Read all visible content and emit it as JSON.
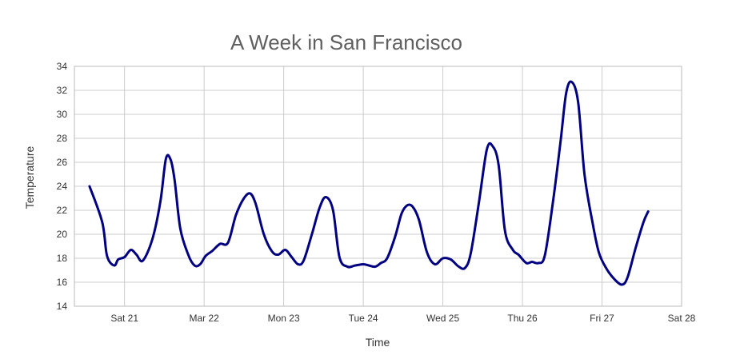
{
  "chart_data": {
    "type": "line",
    "title": "A Week in San Francisco",
    "xlabel": "Time",
    "ylabel": "Temperature",
    "ylim": [
      14,
      34
    ],
    "yticks": [
      "14",
      "16",
      "18",
      "20",
      "22",
      "24",
      "26",
      "28",
      "30",
      "32",
      "34"
    ],
    "xlim": [
      "Mar 20 19:00",
      "Mar 28 12:00"
    ],
    "xticks": [
      {
        "day": 1.0,
        "label": "Sat 21"
      },
      {
        "day": 2.0,
        "label": "Mar 22"
      },
      {
        "day": 3.0,
        "label": "Mon 23"
      },
      {
        "day": 4.0,
        "label": "Tue 24"
      },
      {
        "day": 5.0,
        "label": "Wed 25"
      },
      {
        "day": 6.0,
        "label": "Thu 26"
      },
      {
        "day": 7.0,
        "label": "Fri 27"
      },
      {
        "day": 8.0,
        "label": "Sat 28"
      }
    ],
    "grid": true,
    "legend": "none",
    "colors": {
      "line": "#000080",
      "grid": "#cccccc",
      "title": "#5f5f5f"
    },
    "series": [
      {
        "points": [
          [
            0.56,
            24.0
          ],
          [
            0.72,
            21.0
          ],
          [
            0.78,
            18.2
          ],
          [
            0.87,
            17.4
          ],
          [
            0.92,
            17.9
          ],
          [
            1.0,
            18.1
          ],
          [
            1.08,
            18.7
          ],
          [
            1.15,
            18.3
          ],
          [
            1.23,
            17.8
          ],
          [
            1.35,
            19.6
          ],
          [
            1.45,
            22.7
          ],
          [
            1.52,
            26.3
          ],
          [
            1.58,
            26.2
          ],
          [
            1.63,
            24.5
          ],
          [
            1.7,
            20.5
          ],
          [
            1.8,
            18.3
          ],
          [
            1.88,
            17.4
          ],
          [
            1.95,
            17.5
          ],
          [
            2.02,
            18.2
          ],
          [
            2.1,
            18.6
          ],
          [
            2.2,
            19.2
          ],
          [
            2.3,
            19.3
          ],
          [
            2.4,
            21.6
          ],
          [
            2.5,
            23.0
          ],
          [
            2.58,
            23.4
          ],
          [
            2.65,
            22.5
          ],
          [
            2.75,
            20.0
          ],
          [
            2.85,
            18.6
          ],
          [
            2.93,
            18.3
          ],
          [
            3.02,
            18.7
          ],
          [
            3.1,
            18.1
          ],
          [
            3.18,
            17.5
          ],
          [
            3.25,
            17.8
          ],
          [
            3.35,
            19.9
          ],
          [
            3.45,
            22.2
          ],
          [
            3.53,
            23.1
          ],
          [
            3.62,
            22.0
          ],
          [
            3.7,
            18.1
          ],
          [
            3.8,
            17.3
          ],
          [
            3.9,
            17.4
          ],
          [
            4.0,
            17.5
          ],
          [
            4.07,
            17.4
          ],
          [
            4.15,
            17.3
          ],
          [
            4.22,
            17.6
          ],
          [
            4.3,
            18.0
          ],
          [
            4.4,
            19.8
          ],
          [
            4.48,
            21.7
          ],
          [
            4.55,
            22.4
          ],
          [
            4.62,
            22.3
          ],
          [
            4.7,
            21.2
          ],
          [
            4.8,
            18.5
          ],
          [
            4.9,
            17.5
          ],
          [
            5.0,
            18.0
          ],
          [
            5.1,
            17.9
          ],
          [
            5.2,
            17.3
          ],
          [
            5.28,
            17.2
          ],
          [
            5.35,
            18.4
          ],
          [
            5.45,
            22.5
          ],
          [
            5.55,
            27.0
          ],
          [
            5.62,
            27.4
          ],
          [
            5.7,
            25.8
          ],
          [
            5.78,
            20.3
          ],
          [
            5.88,
            18.7
          ],
          [
            5.95,
            18.3
          ],
          [
            6.05,
            17.6
          ],
          [
            6.12,
            17.7
          ],
          [
            6.2,
            17.6
          ],
          [
            6.28,
            18.2
          ],
          [
            6.38,
            22.5
          ],
          [
            6.48,
            27.8
          ],
          [
            6.55,
            31.8
          ],
          [
            6.62,
            32.7
          ],
          [
            6.7,
            31.0
          ],
          [
            6.78,
            25.0
          ],
          [
            6.88,
            21.0
          ],
          [
            6.96,
            18.5
          ],
          [
            7.05,
            17.2
          ],
          [
            7.15,
            16.3
          ],
          [
            7.25,
            15.8
          ],
          [
            7.32,
            16.4
          ],
          [
            7.42,
            18.8
          ],
          [
            7.52,
            21.0
          ],
          [
            7.58,
            21.9
          ]
        ]
      }
    ]
  }
}
